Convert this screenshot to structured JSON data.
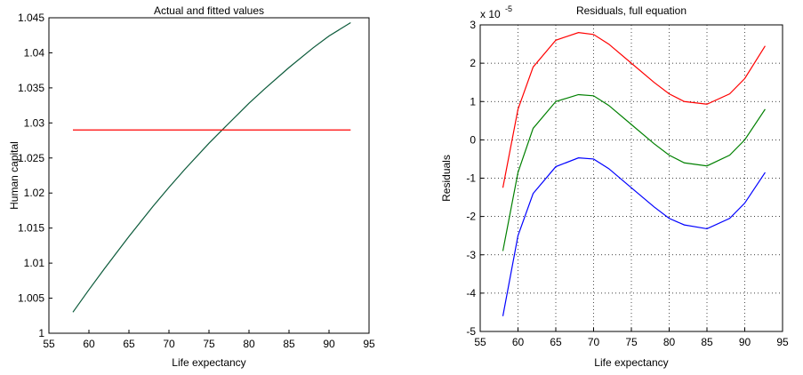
{
  "chart_data": [
    {
      "type": "line",
      "title": "Actual and fitted values",
      "x_label": "Life expectancy",
      "y_label": "Human capital",
      "x": [
        58,
        60,
        62,
        65,
        68,
        70,
        72,
        75,
        77,
        80,
        82,
        85,
        88,
        90,
        92.7
      ],
      "series": [
        {
          "color": "#0b5a3a",
          "values": [
            1.003,
            1.0062,
            1.0093,
            1.0138,
            1.0181,
            1.0208,
            1.0234,
            1.0271,
            1.0294,
            1.0328,
            1.0349,
            1.0379,
            1.0407,
            1.0424,
            1.0443
          ]
        },
        {
          "color": "#ff0000",
          "values": [
            1.029,
            1.029,
            1.029,
            1.029,
            1.029,
            1.029,
            1.029,
            1.029,
            1.029,
            1.029,
            1.029,
            1.029,
            1.029,
            1.029,
            1.029
          ]
        }
      ],
      "xlim": [
        55,
        95
      ],
      "xticks": [
        55,
        60,
        65,
        70,
        75,
        80,
        85,
        90,
        95
      ],
      "ylim": [
        1,
        1.045
      ],
      "yticks": [
        1,
        1.005,
        1.01,
        1.015,
        1.02,
        1.025,
        1.03,
        1.035,
        1.04,
        1.045
      ],
      "grid": false
    },
    {
      "type": "line",
      "title": "Residuals, full equation",
      "x_label": "Life expectancy",
      "y_label": "Residuals",
      "y_scale_label": "x 10",
      "y_scale_exponent": "-5",
      "x": [
        58,
        60,
        62,
        65,
        68,
        70,
        72,
        75,
        78,
        80,
        82,
        85,
        88,
        90,
        92.7
      ],
      "series": [
        {
          "color": "#ff0000",
          "values": [
            -1.25,
            0.8,
            1.9,
            2.6,
            2.8,
            2.75,
            2.5,
            2.0,
            1.5,
            1.2,
            1.0,
            0.93,
            1.2,
            1.6,
            2.45
          ]
        },
        {
          "color": "#008000",
          "values": [
            -2.9,
            -0.85,
            0.3,
            1.0,
            1.18,
            1.15,
            0.9,
            0.4,
            -0.1,
            -0.4,
            -0.6,
            -0.68,
            -0.4,
            0.0,
            0.8
          ]
        },
        {
          "color": "#0000ff",
          "values": [
            -4.6,
            -2.5,
            -1.4,
            -0.7,
            -0.47,
            -0.5,
            -0.75,
            -1.25,
            -1.75,
            -2.05,
            -2.22,
            -2.32,
            -2.05,
            -1.65,
            -0.85
          ]
        }
      ],
      "xlim": [
        55,
        95
      ],
      "xticks": [
        55,
        60,
        65,
        70,
        75,
        80,
        85,
        90,
        95
      ],
      "ylim": [
        -5,
        3
      ],
      "yticks": [
        -5,
        -4,
        -3,
        -2,
        -1,
        0,
        1,
        2,
        3
      ],
      "grid": true
    }
  ]
}
